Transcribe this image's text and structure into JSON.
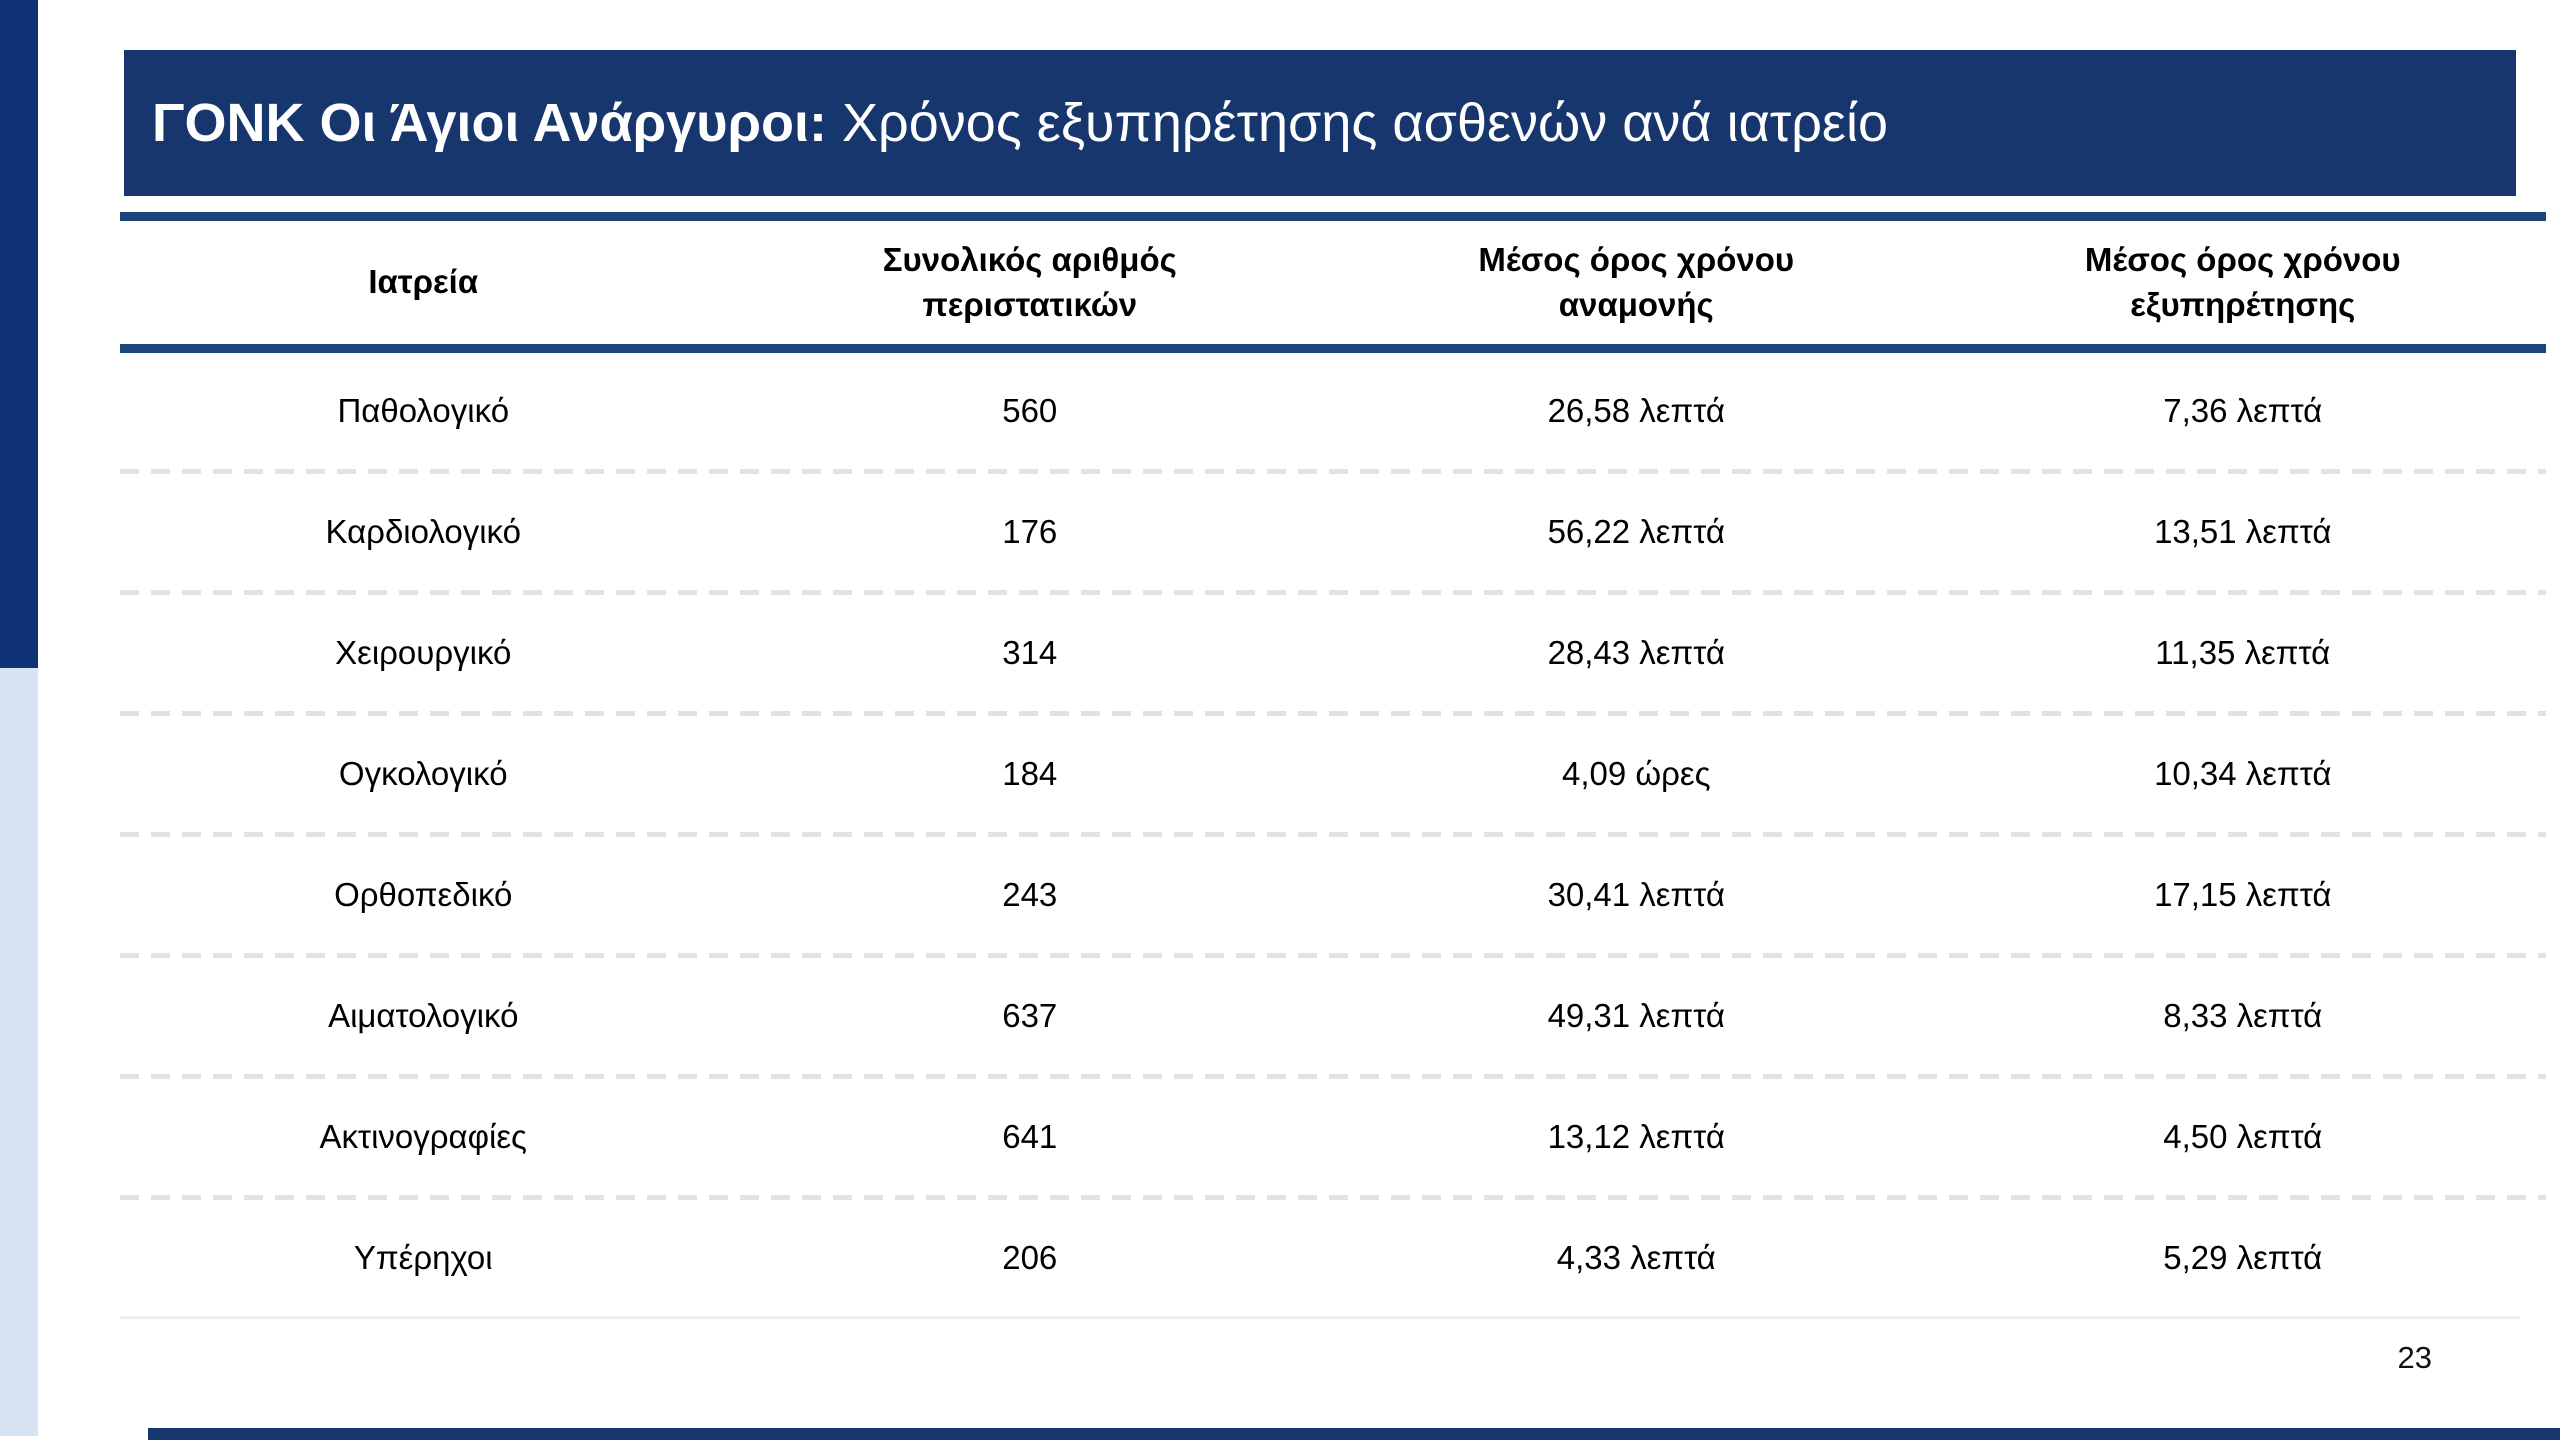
{
  "title": {
    "bold": "ΓΟΝΚ Οι Άγιοι Ανάργυροι: ",
    "regular": "Χρόνος εξυπηρέτησης ασθενών ανά ιατρείο"
  },
  "table": {
    "headers": [
      "Ιατρεία",
      "Συνολικός αριθμός περιστατικών",
      "Μέσος όρος χρόνου αναμονής",
      "Μέσος όρος χρόνου εξυπηρέτησης"
    ],
    "rows": [
      {
        "dept": "Παθολογικό",
        "cases": "560",
        "wait": "26,58 λεπτά",
        "service": "7,36 λεπτά"
      },
      {
        "dept": "Καρδιολογικό",
        "cases": "176",
        "wait": "56,22 λεπτά",
        "service": "13,51 λεπτά"
      },
      {
        "dept": "Χειρουργικό",
        "cases": "314",
        "wait": "28,43 λεπτά",
        "service": "11,35 λεπτά"
      },
      {
        "dept": "Ογκολογικό",
        "cases": "184",
        "wait": "4,09 ώρες",
        "service": "10,34 λεπτά"
      },
      {
        "dept": "Ορθοπεδικό",
        "cases": "243",
        "wait": "30,41 λεπτά",
        "service": "17,15 λεπτά"
      },
      {
        "dept": "Αιματολογικό",
        "cases": "637",
        "wait": "49,31 λεπτά",
        "service": "8,33 λεπτά"
      },
      {
        "dept": "Ακτινογραφίες",
        "cases": "641",
        "wait": "13,12 λεπτά",
        "service": "4,50 λεπτά"
      },
      {
        "dept": "Υπέρηχοι",
        "cases": "206",
        "wait": "4,33 λεπτά",
        "service": "5,29 λεπτά"
      }
    ]
  },
  "page": {
    "number": "23"
  },
  "colors": {
    "title_bar": "#17366D",
    "rule": "#1C4679",
    "stripe_dark": "#0F3376",
    "stripe_light": "#D6E4F5",
    "separator": "#E2E2E2",
    "text": "#000000"
  }
}
